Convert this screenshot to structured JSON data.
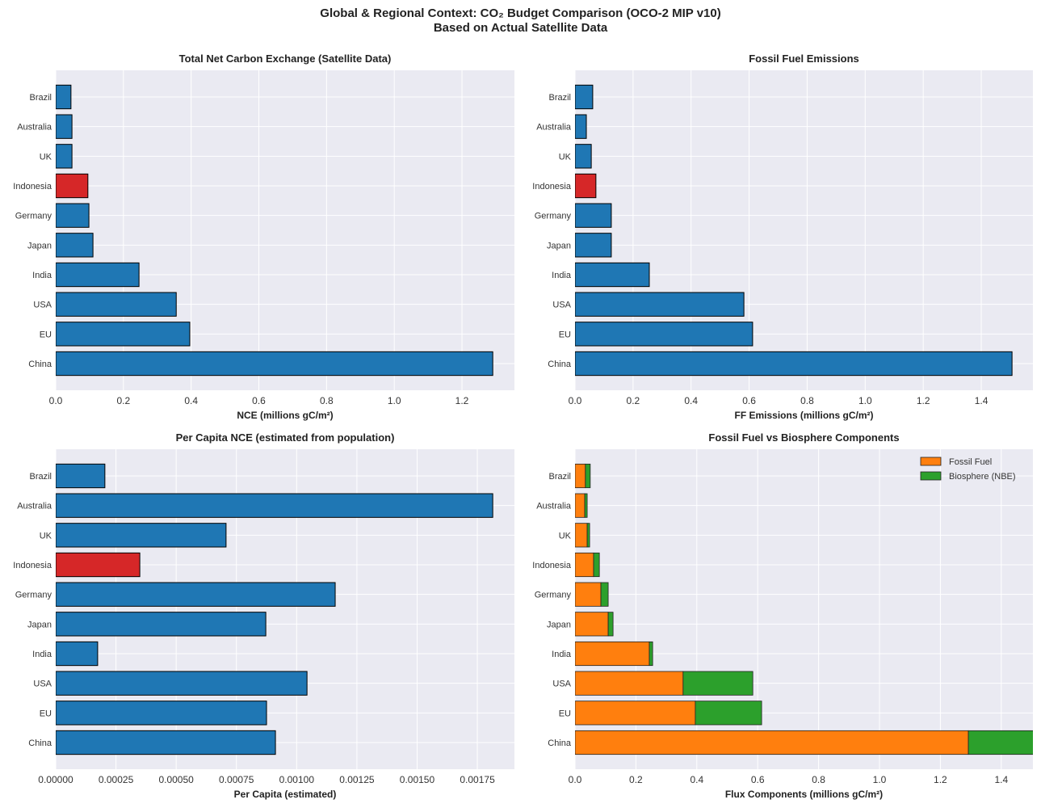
{
  "title_line1": "Global & Regional Context: CO₂ Budget Comparison (OCO-2 MIP v10)",
  "title_line2": "Based on Actual Satellite Data",
  "colors": {
    "bar": "#1f77b4",
    "highlight": "#d62728",
    "fossil": "#ff7f0e",
    "biosphere": "#2ca02c",
    "axes_bg": "#eaeaf2"
  },
  "chart_data": [
    {
      "type": "bar",
      "orientation": "horizontal",
      "title": "Total Net Carbon Exchange (Satellite Data)",
      "xlabel": "NCE (millions gC/m²)",
      "categories": [
        "China",
        "EU",
        "USA",
        "India",
        "Japan",
        "Germany",
        "Indonesia",
        "UK",
        "Australia",
        "Brazil"
      ],
      "values": [
        1.291,
        0.396,
        0.356,
        0.246,
        0.11,
        0.098,
        0.095,
        0.048,
        0.048,
        0.045
      ],
      "highlight": "Indonesia",
      "xlim": [
        0,
        1.355
      ],
      "xticks": [
        "0.0",
        "0.2",
        "0.4",
        "0.6",
        "0.8",
        "1.0",
        "1.2"
      ],
      "grid": true
    },
    {
      "type": "bar",
      "orientation": "horizontal",
      "title": "Fossil Fuel Emissions",
      "xlabel": "FF Emissions (millions gC/m²)",
      "categories": [
        "China",
        "EU",
        "USA",
        "India",
        "Japan",
        "Germany",
        "Indonesia",
        "UK",
        "Australia",
        "Brazil"
      ],
      "values": [
        1.506,
        0.612,
        0.582,
        0.256,
        0.125,
        0.125,
        0.072,
        0.056,
        0.039,
        0.061
      ],
      "highlight": "Indonesia",
      "xlim": [
        0,
        1.578
      ],
      "xticks": [
        "0.0",
        "0.2",
        "0.4",
        "0.6",
        "0.8",
        "1.0",
        "1.2",
        "1.4"
      ],
      "grid": true
    },
    {
      "type": "bar",
      "orientation": "horizontal",
      "title": "Per Capita NCE (estimated from population)",
      "xlabel": "Per Capita (estimated)",
      "categories": [
        "China",
        "EU",
        "USA",
        "India",
        "Japan",
        "Germany",
        "Indonesia",
        "UK",
        "Australia",
        "Brazil"
      ],
      "values": [
        0.000912,
        0.000875,
        0.001043,
        0.000174,
        0.000872,
        0.00116,
        0.000349,
        0.000707,
        0.001814,
        0.000204
      ],
      "highlight": "Indonesia",
      "xlim": [
        0,
        0.001904
      ],
      "xticks": [
        "0.00000",
        "0.00025",
        "0.00050",
        "0.00075",
        "0.00100",
        "0.00125",
        "0.00150",
        "0.00175"
      ],
      "grid": true
    },
    {
      "type": "bar",
      "orientation": "horizontal",
      "stacked": true,
      "title": "Fossil Fuel vs Biosphere Components",
      "xlabel": "Flux Components (millions gC/m²)",
      "categories": [
        "China",
        "EU",
        "USA",
        "India",
        "Japan",
        "Germany",
        "Indonesia",
        "UK",
        "Australia",
        "Brazil"
      ],
      "series": [
        {
          "name": "Fossil Fuel",
          "values": [
            1.292,
            0.395,
            0.355,
            0.244,
            0.109,
            0.085,
            0.061,
            0.04,
            0.032,
            0.034
          ]
        },
        {
          "name": "Biosphere (NBE)",
          "values": [
            0.214,
            0.218,
            0.229,
            0.011,
            0.016,
            0.024,
            0.019,
            0.008,
            0.008,
            0.016
          ]
        }
      ],
      "legend": "top-right",
      "xlim": [
        0,
        1.504
      ],
      "xticks": [
        "0.0",
        "0.2",
        "0.4",
        "0.6",
        "0.8",
        "1.0",
        "1.2",
        "1.4"
      ],
      "grid": true
    }
  ]
}
